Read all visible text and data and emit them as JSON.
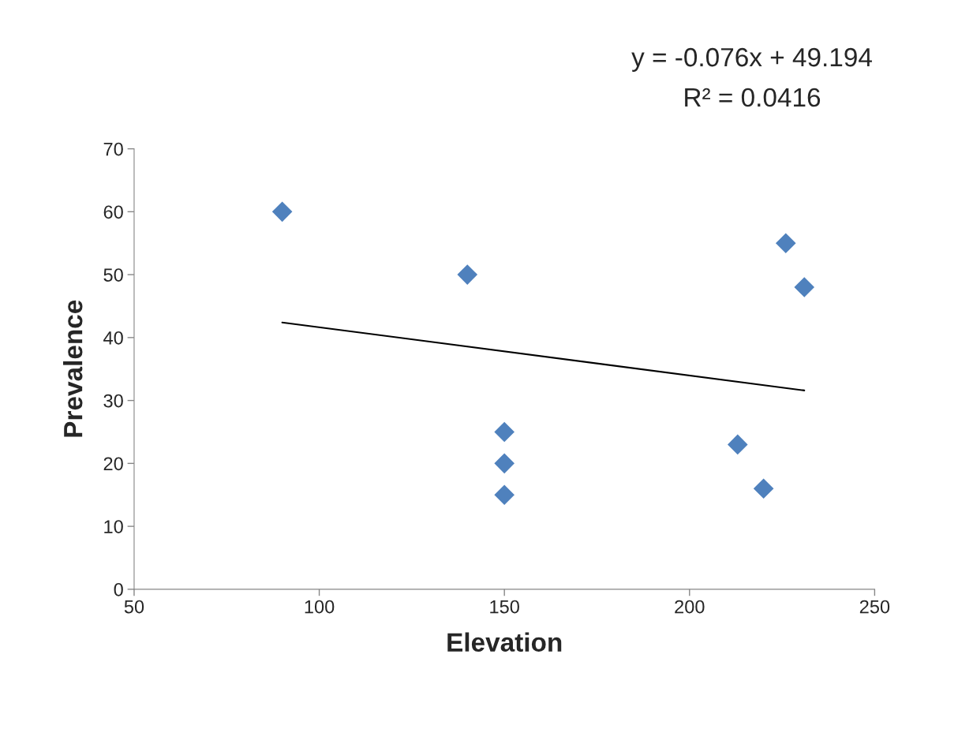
{
  "chart_data": {
    "type": "scatter",
    "xlabel": "Elevation",
    "ylabel": "Prevalence",
    "xlim": [
      50,
      250
    ],
    "xticks": [
      50,
      100,
      150,
      200,
      250
    ],
    "ylim": [
      0,
      70
    ],
    "yticks": [
      0,
      10,
      20,
      30,
      40,
      50,
      60,
      70
    ],
    "grid": false,
    "legend": false,
    "marker": "diamond",
    "series": [
      {
        "color": "#4f81bd",
        "x": [
          90,
          140,
          150,
          150,
          150,
          213,
          220,
          226,
          231
        ],
        "values": [
          60,
          50,
          25,
          20,
          15,
          23,
          16,
          55,
          48
        ]
      },
      {
        "type": "line",
        "color": "#000000",
        "x": [
          90,
          231
        ],
        "values": [
          42.4,
          31.6
        ],
        "marker": "none",
        "line_style": "solid"
      }
    ],
    "annotations": [
      "y = -0.076x + 49.194",
      "R² = 0.0416"
    ]
  }
}
